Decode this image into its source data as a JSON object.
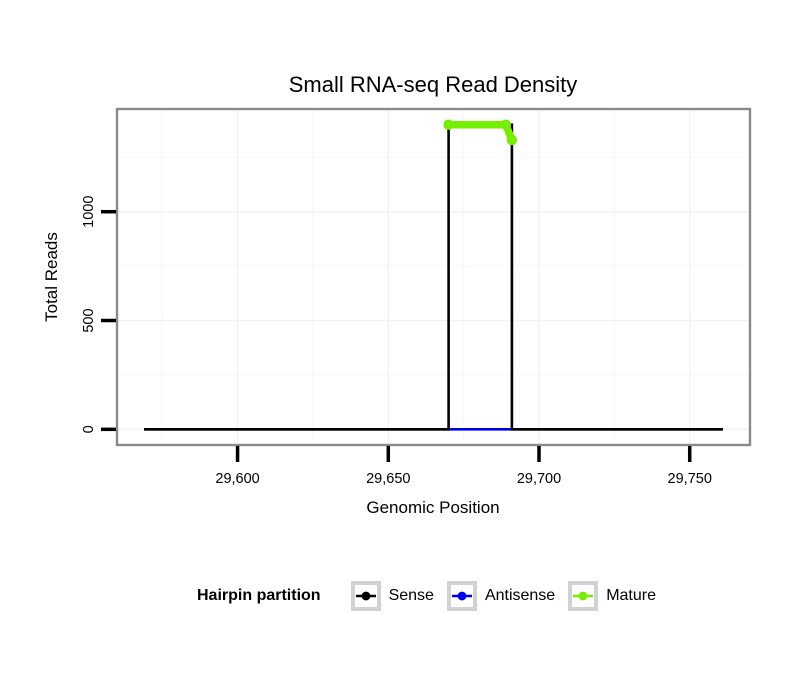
{
  "chart_data": {
    "type": "line",
    "title": "Small RNA-seq Read Density",
    "xlabel": "Genomic Position",
    "ylabel": "Total Reads",
    "xlim": [
      29560,
      29770
    ],
    "ylim": [
      -72,
      1472
    ],
    "grid": true,
    "x_ticks": [
      {
        "value": 29600,
        "label": "29,600"
      },
      {
        "value": 29650,
        "label": "29,650"
      },
      {
        "value": 29700,
        "label": "29,700"
      },
      {
        "value": 29750,
        "label": "29,750"
      }
    ],
    "y_ticks": [
      {
        "value": 0,
        "label": "0"
      },
      {
        "value": 500,
        "label": "500"
      },
      {
        "value": 1000,
        "label": "1000"
      }
    ],
    "x_minor_ticks": [
      29575,
      29625,
      29675,
      29725
    ],
    "y_minor_ticks": [
      250,
      750,
      1250
    ],
    "series": [
      {
        "name": "Antisense",
        "color": "#0000EE",
        "width": 2.6,
        "dots": false,
        "points": [
          [
            29569,
            0
          ],
          [
            29761,
            0
          ]
        ]
      },
      {
        "name": "Sense",
        "color": "#000000",
        "width": 2.6,
        "dots": false,
        "points": [
          [
            29569,
            0
          ],
          [
            29670,
            0
          ],
          [
            29670,
            1400
          ],
          [
            29691,
            1400
          ],
          [
            29691,
            0
          ],
          [
            29761,
            0
          ]
        ]
      },
      {
        "name": "Mature",
        "color": "#76EE00",
        "width": 7.5,
        "dots": true,
        "points": [
          [
            29670,
            1400
          ],
          [
            29689,
            1400
          ],
          [
            29691,
            1330
          ]
        ]
      }
    ],
    "legend": {
      "title": "Hairpin partition",
      "position": "bottom",
      "entries": [
        {
          "label": "Sense",
          "color": "#000000"
        },
        {
          "label": "Antisense",
          "color": "#0000EE"
        },
        {
          "label": "Mature",
          "color": "#76EE00"
        }
      ]
    },
    "style": {
      "panel_border": "#8a8a8a",
      "grid_major": "#f2f2f2",
      "grid_minor": "#f8f8f8",
      "tick_color": "#000000",
      "legend_key_border": "#d2d2d2",
      "background": "#ffffff"
    }
  }
}
